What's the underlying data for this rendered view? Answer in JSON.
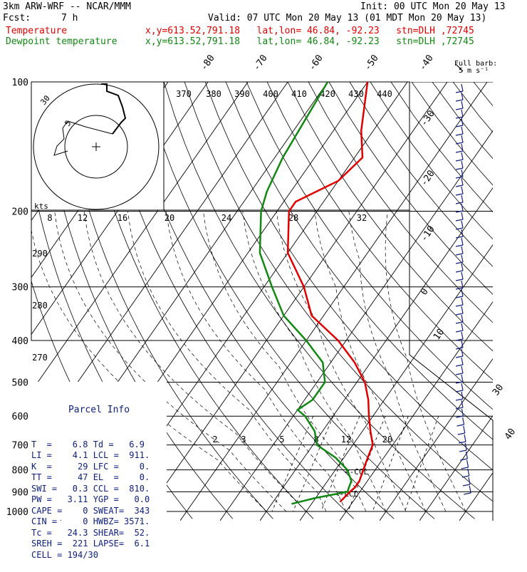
{
  "header": {
    "model": "3km ARW-WRF -- NCAR/MMM",
    "init": "Init: 00 UTC Mon 20 May 13",
    "fcst_label": "Fcst:",
    "fcst_value": "7 h",
    "valid": "Valid: 07 UTC Mon 20 May 13 (01 MDT Mon 20 May 13)",
    "temp_label": "Temperature",
    "temp_info": "x,y=613.52,791.18   lat,lon= 46.84, -92.23   stn=DLH ,72745",
    "dew_label": "Dewpoint temperature",
    "dew_info": "x,y=613.52,791.18   lat,lon= 46.84, -92.23   stn=DLH ,72745",
    "barb_label_1": "Full barb:",
    "barb_label_2": "5 m s⁻¹"
  },
  "parcel_info": {
    "title": "Parcel Info",
    "rows": [
      "T  =    6.8 Td =   6.9",
      "LI =    4.1 LCL =  911.",
      "K  =     29 LFC =    0.",
      "TT =     47 EL  =    0.",
      "SWI =   0.3 CCL =  810.",
      "PW =   3.11 YGP =   0.0",
      "CAPE =    0 SWEAT=  343",
      "CIN =     0 HWBZ= 3571.",
      "Tc =   24.3 SHEAR=  52.",
      "SREH =  221 LAPSE=  6.1",
      "CELL = 194/30"
    ]
  },
  "chart_data": {
    "type": "line",
    "title": "",
    "pressure_levels": [
      "100",
      "200",
      "300",
      "400",
      "500",
      "600",
      "700",
      "800",
      "900",
      "1000"
    ],
    "isotherm_labels": [
      "-80",
      "-70",
      "-60",
      "-50",
      "-40",
      "-30",
      "-20",
      "-10",
      "0",
      "10",
      "30",
      "40"
    ],
    "theta_labels": [
      "370",
      "380",
      "390",
      "400",
      "410",
      "420",
      "430",
      "440"
    ],
    "theta_side_labels": [
      "290",
      "280",
      "270"
    ],
    "mixing_ratio_labels": [
      "2",
      "3",
      "5",
      "8",
      "12",
      "20"
    ],
    "hodograph_speed_labels": [
      "8",
      "12",
      "16",
      "20",
      "24",
      "28",
      "32"
    ],
    "hodograph_units": "kts",
    "hodograph_ring_labels": [
      "5",
      "30"
    ],
    "ccl_label": "<-CCL",
    "lcl_label": "<-LCL",
    "series": [
      {
        "name": "Temperature",
        "color": "#e00000",
        "p": [
          100,
          130,
          150,
          170,
          190,
          200,
          250,
          300,
          350,
          400,
          450,
          500,
          550,
          600,
          650,
          700,
          750,
          800,
          850,
          880,
          900,
          950
        ],
        "t": [
          -60,
          -53,
          -48,
          -50,
          -57,
          -57,
          -50,
          -40,
          -33,
          -22,
          -14,
          -8,
          -4,
          -1,
          2,
          5,
          6,
          7,
          8,
          8,
          7.5,
          6.8
        ]
      },
      {
        "name": "Dewpoint temperature",
        "color": "#118811",
        "p": [
          100,
          150,
          180,
          200,
          250,
          300,
          350,
          400,
          450,
          500,
          550,
          580,
          600,
          650,
          700,
          750,
          800,
          850,
          880,
          900,
          930,
          960
        ],
        "t": [
          -70,
          -68,
          -66,
          -64,
          -57,
          -48,
          -40,
          -30,
          -22,
          -18,
          -18,
          -20,
          -17,
          -12,
          -9,
          -2,
          3,
          6,
          6.5,
          6.9,
          0,
          -5
        ]
      }
    ],
    "x_range_celsius": [
      -40,
      40
    ],
    "y_range_hpa": [
      100,
      1000
    ],
    "log_pressure": true,
    "skew": true
  }
}
